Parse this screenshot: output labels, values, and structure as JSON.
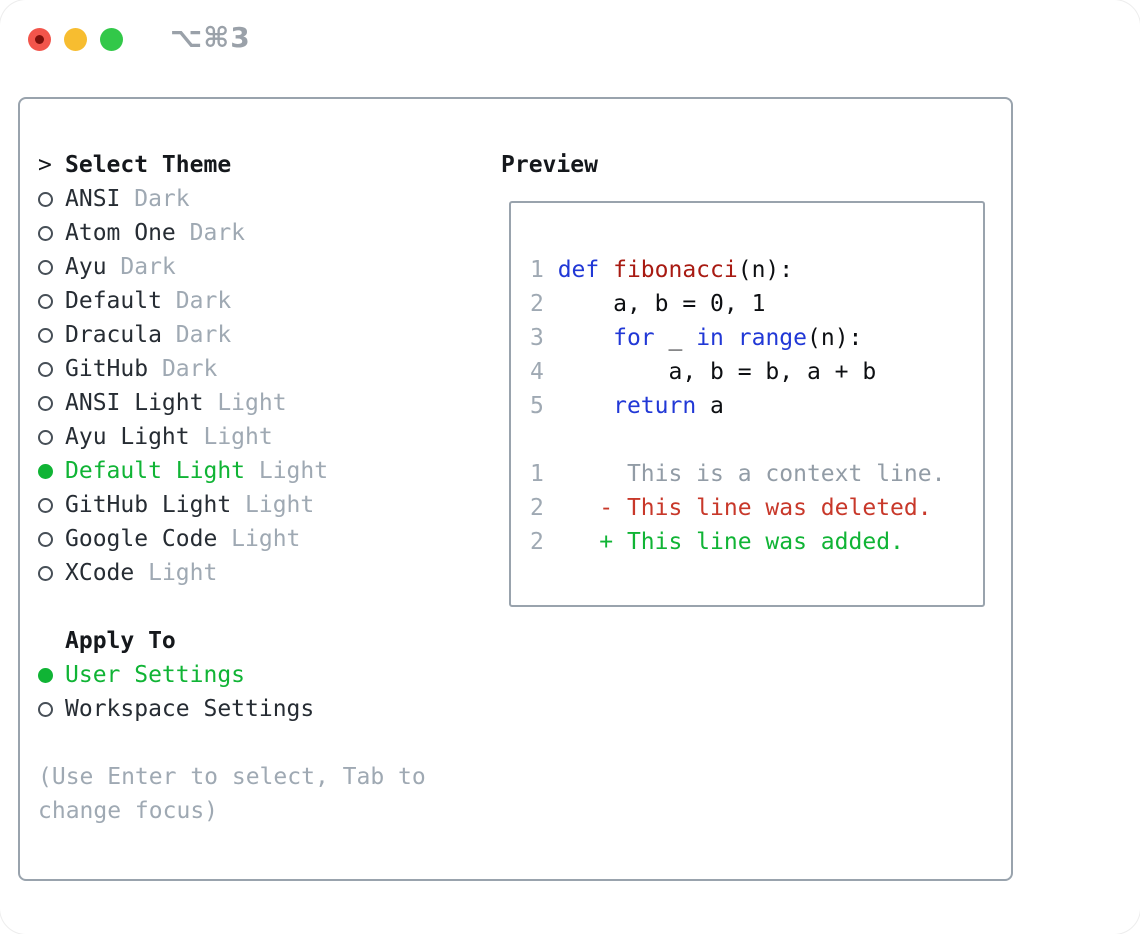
{
  "window": {
    "shortcut": "⌥⌘3",
    "buttons": [
      "close",
      "minimize",
      "zoom"
    ]
  },
  "theme_panel": {
    "prompt": ">",
    "title": "Select Theme",
    "items": [
      {
        "name": "ANSI",
        "variant": "Dark",
        "selected": false
      },
      {
        "name": "Atom One",
        "variant": "Dark",
        "selected": false
      },
      {
        "name": "Ayu",
        "variant": "Dark",
        "selected": false
      },
      {
        "name": "Default",
        "variant": "Dark",
        "selected": false
      },
      {
        "name": "Dracula",
        "variant": "Dark",
        "selected": false
      },
      {
        "name": "GitHub",
        "variant": "Dark",
        "selected": false
      },
      {
        "name": "ANSI Light",
        "variant": "Light",
        "selected": false
      },
      {
        "name": "Ayu Light",
        "variant": "Light",
        "selected": false
      },
      {
        "name": "Default Light",
        "variant": "Light",
        "selected": true
      },
      {
        "name": "GitHub Light",
        "variant": "Light",
        "selected": false
      },
      {
        "name": "Google Code",
        "variant": "Light",
        "selected": false
      },
      {
        "name": "XCode",
        "variant": "Light",
        "selected": false
      }
    ],
    "apply_to": {
      "title": "Apply To",
      "options": [
        {
          "label": "User Settings",
          "selected": true
        },
        {
          "label": "Workspace Settings",
          "selected": false
        }
      ]
    },
    "hint": "(Use Enter to select, Tab to change focus)"
  },
  "preview": {
    "title": "Preview",
    "code_lines": [
      {
        "num": "1",
        "segments": [
          {
            "text": "def ",
            "style": "kw"
          },
          {
            "text": "fibonacci",
            "style": "fn"
          },
          {
            "text": "(n):",
            "style": "plain"
          }
        ]
      },
      {
        "num": "2",
        "segments": [
          {
            "text": "    a, b = 0, 1",
            "style": "plain"
          }
        ]
      },
      {
        "num": "3",
        "segments": [
          {
            "text": "    ",
            "style": "plain"
          },
          {
            "text": "for",
            "style": "kw"
          },
          {
            "text": " _ ",
            "style": "plain"
          },
          {
            "text": "in",
            "style": "kw"
          },
          {
            "text": " ",
            "style": "plain"
          },
          {
            "text": "range",
            "style": "kw"
          },
          {
            "text": "(n):",
            "style": "plain"
          }
        ]
      },
      {
        "num": "4",
        "segments": [
          {
            "text": "        a, b = b, a + b",
            "style": "plain"
          }
        ]
      },
      {
        "num": "5",
        "segments": [
          {
            "text": "    ",
            "style": "plain"
          },
          {
            "text": "return",
            "style": "kw"
          },
          {
            "text": " a",
            "style": "plain"
          }
        ]
      }
    ],
    "diff_lines": [
      {
        "num": "1",
        "segments": [
          {
            "text": "     This is a context line.",
            "style": "ctx"
          }
        ]
      },
      {
        "num": "2",
        "segments": [
          {
            "text": "   - This line was deleted.",
            "style": "del"
          }
        ]
      },
      {
        "num": "2",
        "segments": [
          {
            "text": "   + This line was added.",
            "style": "add"
          }
        ]
      }
    ]
  },
  "colors": {
    "accent_green": "#10b435",
    "deleted_red": "#c8382a",
    "keyword_blue": "#2138d6",
    "function_red": "#a81a12",
    "muted_gray": "#9fa9b3",
    "context_gray": "#929ca6",
    "border_gray": "#99a3ad",
    "traffic_red": "#f2554b",
    "traffic_red_dot": "#7d100b",
    "traffic_yellow": "#f7bd30",
    "traffic_green": "#32c849",
    "shortcut_gray": "#9aa1a9"
  }
}
